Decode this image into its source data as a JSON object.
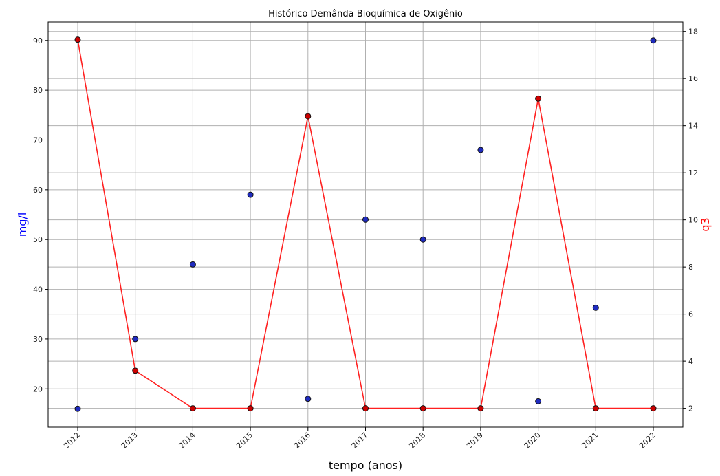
{
  "chart_data": {
    "type": "scatter",
    "title": "Histórico Demânda Bioquímica de Oxigênio",
    "xlabel": "tempo (anos)",
    "ylabel": "mg/l",
    "ylabel_right": "q3",
    "x": [
      "2012",
      "2013",
      "2014",
      "2015",
      "2016",
      "2017",
      "2018",
      "2019",
      "2020",
      "2021",
      "2022"
    ],
    "ylim_left": [
      12.3,
      93.7
    ],
    "ylim_right": [
      1.2,
      18.4
    ],
    "yticks_left": [
      20,
      30,
      40,
      50,
      60,
      70,
      80,
      90
    ],
    "yticks_right": [
      2,
      4,
      6,
      8,
      10,
      12,
      14,
      16,
      18
    ],
    "grid": true,
    "series": [
      {
        "axis": "left",
        "kind": "scatter",
        "color": "#1f2bbf",
        "edge_color": "#111111",
        "values": [
          16,
          30,
          45,
          59,
          18,
          54,
          50,
          68,
          17.5,
          36.3,
          90
        ]
      },
      {
        "axis": "right",
        "kind": "line",
        "color": "#ff2020",
        "marker_color": "#cc0000",
        "values": [
          17.65,
          3.6,
          2,
          2,
          14.4,
          2,
          2,
          2,
          15.15,
          2,
          2
        ]
      }
    ],
    "colors": {
      "left_label": "#0000ff",
      "right_label": "#ff0000",
      "grid": "#b0b0b0"
    }
  }
}
